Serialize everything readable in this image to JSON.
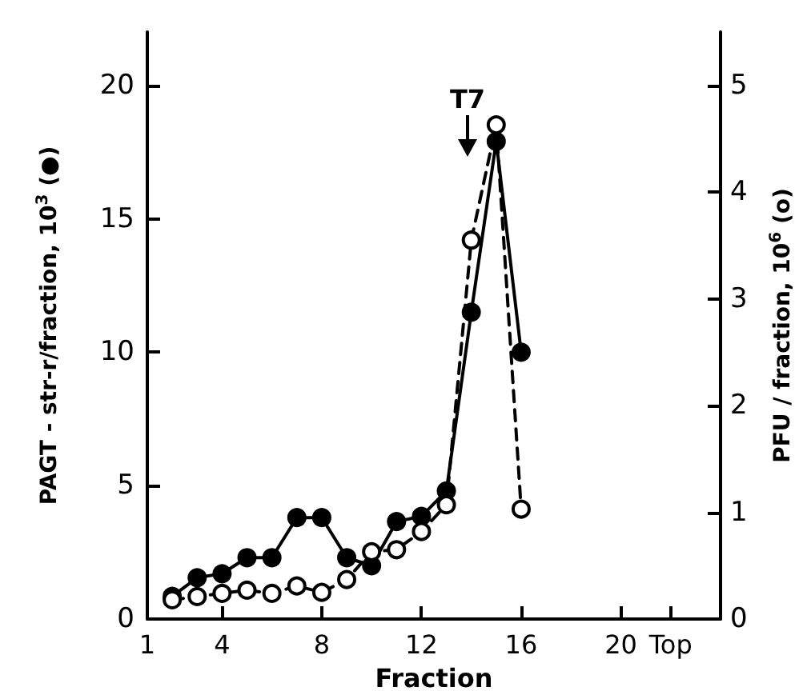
{
  "chart_data": {
    "type": "line",
    "xlabel": "Fraction",
    "ylabel": "PAGT - str-r/fraction, 10$^{3}$ (●)",
    "y2label": "PFU / fraction, 10$^{6}$ (o)",
    "series": [
      {
        "color": "#000000",
        "line_style": "solid",
        "x": [
          2,
          3,
          4,
          5,
          6,
          7,
          8,
          9,
          10,
          11,
          12,
          13,
          14,
          15,
          16
        ],
        "values": [
          0.85,
          1.55,
          1.7,
          2.3,
          2.3,
          3.8,
          3.8,
          2.3,
          2.0,
          3.65,
          3.85,
          4.8,
          11.5,
          17.9,
          10.0
        ]
      },
      {
        "color": "#000000",
        "line_style": "dashed",
        "axis": "y2",
        "x": [
          2,
          3,
          4,
          5,
          6,
          7,
          8,
          9,
          10,
          11,
          12,
          13,
          14,
          15,
          16
        ],
        "values": [
          0.18,
          0.21,
          0.24,
          0.27,
          0.24,
          0.31,
          0.25,
          0.37,
          0.63,
          0.65,
          0.82,
          1.07,
          3.55,
          4.63,
          1.03
        ]
      }
    ],
    "xlim": [
      1,
      24
    ],
    "xticks": [
      1,
      4,
      8,
      12,
      16,
      20,
      {
        "value": 22,
        "label": "Top"
      }
    ],
    "ylim": [
      0,
      22
    ],
    "yticks": [
      0,
      5,
      10,
      15,
      20
    ],
    "y2lim": [
      0,
      5.5
    ],
    "y2ticks": [
      0,
      1,
      2,
      3,
      4,
      5
    ],
    "marker": "circle",
    "grid": false,
    "annotations": [
      "T7"
    ]
  }
}
